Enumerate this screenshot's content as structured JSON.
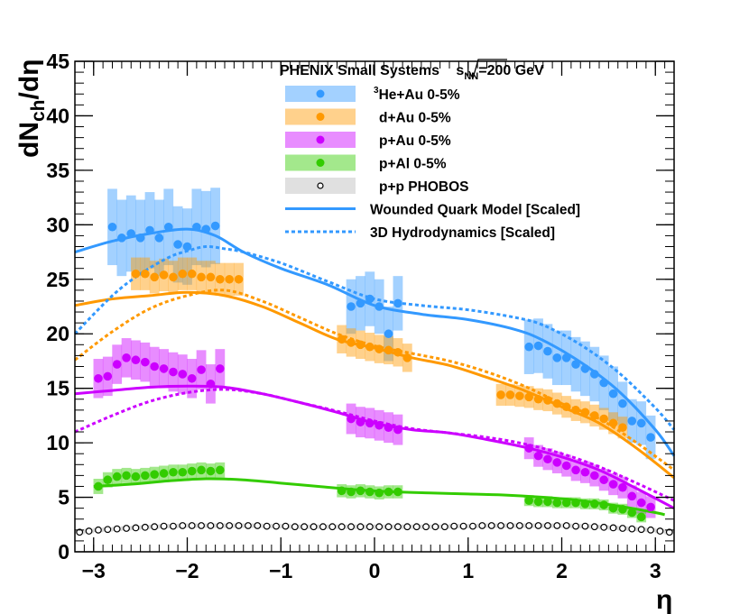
{
  "chart_data": {
    "type": "scatter",
    "title_prefix": "PHENIX Small Systems ",
    "title_sqrt": "s",
    "title_sub": "NN",
    "title_suffix": "=200 GeV",
    "ylabel_main": "dN",
    "ylabel_sub": "ch",
    "ylabel_tail": "/dη",
    "xlabel": "η",
    "xlim": [
      -3.2,
      3.2
    ],
    "ylim": [
      0,
      45
    ],
    "xticks": [
      -3,
      -2,
      -1,
      0,
      1,
      2,
      3
    ],
    "xtick_labels": [
      "−3",
      "−2",
      "−1",
      "0",
      "1",
      "2",
      "3"
    ],
    "yticks": [
      0,
      5,
      10,
      15,
      20,
      25,
      30,
      35,
      40,
      45
    ],
    "ytick_labels": [
      "0",
      "5",
      "10",
      "15",
      "20",
      "25",
      "30",
      "35",
      "40",
      "45"
    ],
    "colors": {
      "he_au": "#3399ff",
      "d_au": "#ff9900",
      "p_au": "#cc00ff",
      "p_al": "#33cc00",
      "pp": "#000000",
      "pp_band": "#cccccc"
    },
    "legend": [
      {
        "key": "he_au",
        "kind": "band",
        "label_sup": "3",
        "label": "He+Au 0-5%"
      },
      {
        "key": "d_au",
        "kind": "band",
        "label": "d+Au  0-5%"
      },
      {
        "key": "p_au",
        "kind": "band",
        "label": "p+Au  0-5%"
      },
      {
        "key": "p_al",
        "kind": "band",
        "label": "p+Al   0-5%"
      },
      {
        "key": "pp",
        "kind": "open",
        "label": "p+p    PHOBOS"
      },
      {
        "key": "wqm",
        "kind": "solid",
        "label": "Wounded Quark Model [Scaled]"
      },
      {
        "key": "hydro",
        "kind": "dashed",
        "label": "3D Hydrodynamics [Scaled]"
      }
    ],
    "series": [
      {
        "name": "3He+Au 0-5%",
        "key": "he_au",
        "x": [
          -2.8,
          -2.7,
          -2.6,
          -2.5,
          -2.4,
          -2.3,
          -2.2,
          -2.1,
          -2.0,
          -1.9,
          -1.8,
          -1.7,
          -0.25,
          -0.15,
          -0.05,
          0.05,
          0.15,
          0.25,
          1.65,
          1.75,
          1.85,
          1.95,
          2.05,
          2.15,
          2.25,
          2.35,
          2.45,
          2.55,
          2.65,
          2.75,
          2.85,
          2.95
        ],
        "y": [
          29.8,
          28.8,
          29.2,
          28.8,
          29.5,
          28.8,
          29.8,
          28.2,
          28.0,
          29.8,
          29.6,
          29.9,
          22.5,
          22.8,
          23.2,
          22.5,
          20.0,
          22.8,
          18.8,
          18.9,
          18.4,
          17.8,
          17.8,
          17.2,
          16.8,
          16.3,
          15.5,
          14.5,
          13.6,
          12.0,
          11.8,
          10.5
        ],
        "err": [
          3.5,
          3.5,
          3.5,
          3.5,
          3.5,
          3.5,
          3.5,
          3.5,
          3.5,
          3.5,
          3.5,
          3.5,
          2.5,
          2.5,
          2.5,
          2.5,
          2.5,
          2.5,
          2.5,
          2.5,
          2.5,
          2.5,
          2.5,
          2.5,
          2.5,
          2.5,
          2.5,
          2.5,
          2.0,
          2.0,
          2.0,
          2.0
        ]
      },
      {
        "name": "d+Au 0-5%",
        "key": "d_au",
        "x": [
          -2.55,
          -2.45,
          -2.35,
          -2.25,
          -2.15,
          -2.05,
          -1.95,
          -1.85,
          -1.75,
          -1.65,
          -1.55,
          -1.45,
          -0.35,
          -0.25,
          -0.15,
          -0.05,
          0.05,
          0.15,
          0.25,
          0.35,
          1.35,
          1.45,
          1.55,
          1.65,
          1.75,
          1.85,
          1.95,
          2.05,
          2.15,
          2.25,
          2.35,
          2.45,
          2.55,
          2.65
        ],
        "y": [
          25.5,
          25.5,
          25.2,
          25.4,
          25.2,
          25.5,
          25.5,
          25.2,
          25.2,
          25.0,
          25.0,
          25.0,
          19.5,
          19.2,
          19.0,
          18.8,
          18.6,
          18.5,
          18.3,
          17.8,
          14.4,
          14.4,
          14.3,
          14.2,
          14.0,
          13.9,
          13.6,
          13.3,
          13.0,
          12.8,
          12.5,
          12.2,
          11.8,
          11.4
        ],
        "err": [
          1.5,
          1.5,
          1.5,
          1.5,
          1.5,
          1.5,
          1.5,
          1.5,
          1.5,
          1.5,
          1.5,
          1.5,
          1.3,
          1.3,
          1.3,
          1.3,
          1.3,
          1.3,
          1.3,
          1.3,
          1.0,
          1.0,
          1.0,
          1.0,
          1.0,
          1.0,
          1.0,
          1.0,
          1.0,
          1.0,
          1.0,
          1.0,
          1.0,
          1.0
        ]
      },
      {
        "name": "p+Au 0-5%",
        "key": "p_au",
        "x": [
          -2.95,
          -2.85,
          -2.75,
          -2.65,
          -2.55,
          -2.45,
          -2.35,
          -2.25,
          -2.15,
          -2.05,
          -1.95,
          -1.85,
          -1.75,
          -1.65,
          -0.25,
          -0.15,
          -0.05,
          0.05,
          0.15,
          0.25,
          1.65,
          1.75,
          1.85,
          1.95,
          2.05,
          2.15,
          2.25,
          2.35,
          2.45,
          2.55,
          2.65,
          2.75,
          2.85,
          2.95
        ],
        "y": [
          15.9,
          16.1,
          17.2,
          17.8,
          17.6,
          17.4,
          17.0,
          16.8,
          16.5,
          16.3,
          15.9,
          16.7,
          15.4,
          16.8,
          12.2,
          11.9,
          11.8,
          11.6,
          11.4,
          11.2,
          9.5,
          8.8,
          8.5,
          8.2,
          7.9,
          7.5,
          7.3,
          7.0,
          6.6,
          6.2,
          5.9,
          5.1,
          4.5,
          4.1
        ],
        "err": [
          1.8,
          1.8,
          1.8,
          1.8,
          1.8,
          1.8,
          1.8,
          1.8,
          1.8,
          1.8,
          1.8,
          1.8,
          1.8,
          1.8,
          1.4,
          1.4,
          1.4,
          1.4,
          1.4,
          1.4,
          1.0,
          1.0,
          1.0,
          1.0,
          1.0,
          1.0,
          1.0,
          1.0,
          1.0,
          1.0,
          1.0,
          1.0,
          1.0,
          1.0
        ]
      },
      {
        "name": "p+Al 0-5%",
        "key": "p_al",
        "x": [
          -2.95,
          -2.85,
          -2.75,
          -2.65,
          -2.55,
          -2.45,
          -2.35,
          -2.25,
          -2.15,
          -2.05,
          -1.95,
          -1.85,
          -1.75,
          -1.65,
          -0.35,
          -0.25,
          -0.15,
          -0.05,
          0.05,
          0.15,
          0.25,
          1.65,
          1.75,
          1.85,
          1.95,
          2.05,
          2.15,
          2.25,
          2.35,
          2.45,
          2.55,
          2.65,
          2.75,
          2.85
        ],
        "y": [
          6.0,
          6.6,
          6.9,
          7.0,
          6.9,
          7.0,
          7.1,
          7.2,
          7.3,
          7.3,
          7.4,
          7.5,
          7.4,
          7.5,
          5.6,
          5.5,
          5.6,
          5.5,
          5.4,
          5.5,
          5.5,
          4.7,
          4.6,
          4.6,
          4.5,
          4.5,
          4.5,
          4.4,
          4.4,
          4.3,
          4.0,
          3.9,
          3.6,
          3.2
        ],
        "err": [
          0.7,
          0.7,
          0.7,
          0.7,
          0.7,
          0.7,
          0.7,
          0.7,
          0.7,
          0.7,
          0.7,
          0.7,
          0.7,
          0.7,
          0.6,
          0.6,
          0.6,
          0.6,
          0.6,
          0.6,
          0.6,
          0.5,
          0.5,
          0.5,
          0.5,
          0.5,
          0.5,
          0.5,
          0.5,
          0.5,
          0.5,
          0.5,
          0.5,
          0.5
        ]
      },
      {
        "name": "p+p PHOBOS",
        "key": "pp",
        "x": [
          -3.15,
          -3.05,
          -2.95,
          -2.85,
          -2.75,
          -2.65,
          -2.55,
          -2.45,
          -2.35,
          -2.25,
          -2.15,
          -2.05,
          -1.95,
          -1.85,
          -1.75,
          -1.65,
          -1.55,
          -1.45,
          -1.35,
          -1.25,
          -1.15,
          -1.05,
          -0.95,
          -0.85,
          -0.75,
          -0.65,
          -0.55,
          -0.45,
          -0.35,
          -0.25,
          -0.15,
          -0.05,
          0.05,
          0.15,
          0.25,
          0.35,
          0.45,
          0.55,
          0.65,
          0.75,
          0.85,
          0.95,
          1.05,
          1.15,
          1.25,
          1.35,
          1.45,
          1.55,
          1.65,
          1.75,
          1.85,
          1.95,
          2.05,
          2.15,
          2.25,
          2.35,
          2.45,
          2.55,
          2.65,
          2.75,
          2.85,
          2.95,
          3.05,
          3.15
        ],
        "y": [
          1.8,
          1.9,
          2.0,
          2.05,
          2.1,
          2.15,
          2.2,
          2.25,
          2.3,
          2.35,
          2.35,
          2.4,
          2.4,
          2.4,
          2.4,
          2.4,
          2.4,
          2.4,
          2.4,
          2.4,
          2.35,
          2.35,
          2.35,
          2.3,
          2.3,
          2.3,
          2.3,
          2.3,
          2.3,
          2.3,
          2.3,
          2.3,
          2.3,
          2.3,
          2.3,
          2.3,
          2.3,
          2.3,
          2.3,
          2.3,
          2.35,
          2.35,
          2.35,
          2.4,
          2.4,
          2.4,
          2.4,
          2.4,
          2.4,
          2.4,
          2.4,
          2.4,
          2.4,
          2.35,
          2.35,
          2.3,
          2.25,
          2.2,
          2.15,
          2.1,
          2.05,
          2.0,
          1.9,
          1.8
        ],
        "err": [
          0.2,
          0.2,
          0.2,
          0.2,
          0.2,
          0.2,
          0.2,
          0.2,
          0.2,
          0.2,
          0.2,
          0.2,
          0.2,
          0.2,
          0.2,
          0.2,
          0.2,
          0.2,
          0.2,
          0.2,
          0.2,
          0.2,
          0.2,
          0.2,
          0.2,
          0.2,
          0.2,
          0.2,
          0.2,
          0.2,
          0.2,
          0.2,
          0.2,
          0.2,
          0.2,
          0.2,
          0.2,
          0.2,
          0.2,
          0.2,
          0.2,
          0.2,
          0.2,
          0.2,
          0.2,
          0.2,
          0.2,
          0.2,
          0.2,
          0.2,
          0.2,
          0.2,
          0.2,
          0.2,
          0.2,
          0.2,
          0.2,
          0.2,
          0.2,
          0.2,
          0.2,
          0.2,
          0.2,
          0.2
        ]
      }
    ],
    "curves": [
      {
        "name": "Wounded Quark Model [Scaled]",
        "key": "he_au",
        "style": "solid",
        "x": [
          -3.2,
          -2.8,
          -2.4,
          -2.0,
          -1.7,
          -1.4,
          -1.0,
          -0.5,
          0.0,
          0.5,
          1.0,
          1.5,
          1.8,
          2.2,
          2.6,
          3.0,
          3.2
        ],
        "y": [
          27.5,
          28.5,
          29.2,
          29.6,
          29.0,
          27.5,
          26.0,
          24.5,
          22.6,
          21.8,
          21.3,
          20.4,
          19.4,
          17.4,
          14.8,
          11.2,
          8.8
        ]
      },
      {
        "name": "Wounded Quark Model [Scaled]",
        "key": "d_au",
        "style": "solid",
        "x": [
          -3.2,
          -2.8,
          -2.4,
          -2.0,
          -1.6,
          -1.2,
          -0.8,
          -0.4,
          0.0,
          0.4,
          0.8,
          1.2,
          1.6,
          2.0,
          2.4,
          2.8,
          3.2
        ],
        "y": [
          22.6,
          23.2,
          23.5,
          23.8,
          23.5,
          22.5,
          21.0,
          19.5,
          18.7,
          17.8,
          17.1,
          16.0,
          14.8,
          13.3,
          11.8,
          9.5,
          6.8
        ]
      },
      {
        "name": "Wounded Quark Model [Scaled]",
        "key": "p_au",
        "style": "solid",
        "x": [
          -3.2,
          -2.8,
          -2.4,
          -2.0,
          -1.6,
          -1.2,
          -0.8,
          -0.4,
          0.0,
          0.4,
          0.8,
          1.2,
          1.6,
          2.0,
          2.4,
          2.8,
          3.2
        ],
        "y": [
          14.5,
          14.8,
          15.1,
          15.2,
          15.1,
          14.5,
          13.7,
          12.8,
          11.8,
          11.2,
          10.9,
          10.3,
          9.6,
          8.7,
          7.5,
          5.8,
          4.0
        ]
      },
      {
        "name": "Wounded Quark Model [Scaled]",
        "key": "p_al",
        "style": "solid",
        "x": [
          -3.0,
          -2.6,
          -2.2,
          -1.8,
          -1.4,
          -1.0,
          -0.6,
          -0.2,
          0.2,
          0.6,
          1.0,
          1.4,
          1.8,
          2.2,
          2.6,
          3.0,
          3.1
        ],
        "y": [
          6.0,
          6.2,
          6.5,
          6.7,
          6.6,
          6.3,
          6.0,
          5.7,
          5.5,
          5.4,
          5.3,
          5.2,
          5.0,
          4.7,
          4.2,
          3.6,
          3.4
        ]
      },
      {
        "name": "3D Hydrodynamics [Scaled]",
        "key": "he_au",
        "style": "dashed",
        "x": [
          -3.2,
          -2.8,
          -2.5,
          -2.2,
          -2.0,
          -1.8,
          -1.6,
          -1.4,
          -1.0,
          -0.5,
          0.0,
          0.5,
          1.0,
          1.5,
          1.8,
          2.2,
          2.6,
          3.0,
          3.2
        ],
        "y": [
          20.0,
          23.5,
          25.5,
          27.0,
          27.6,
          28.0,
          27.8,
          27.5,
          26.5,
          24.8,
          23.2,
          22.6,
          22.2,
          21.5,
          20.8,
          19.0,
          16.5,
          13.2,
          11.2
        ]
      },
      {
        "name": "3D Hydrodynamics [Scaled]",
        "key": "d_au",
        "style": "dashed",
        "x": [
          -3.2,
          -2.8,
          -2.4,
          -2.0,
          -1.6,
          -1.2,
          -0.8,
          -0.4,
          0.0,
          0.4,
          0.8,
          1.2,
          1.6,
          2.0,
          2.4,
          2.8,
          3.2
        ],
        "y": [
          17.6,
          20.2,
          22.3,
          23.5,
          24.0,
          23.0,
          21.5,
          20.0,
          18.9,
          18.2,
          17.5,
          16.5,
          15.2,
          13.6,
          12.2,
          10.0,
          7.5
        ]
      },
      {
        "name": "3D Hydrodynamics [Scaled]",
        "key": "p_au",
        "style": "dashed",
        "x": [
          -3.2,
          -2.8,
          -2.4,
          -2.0,
          -1.6,
          -1.2,
          -0.8,
          -0.4,
          0.0,
          0.4,
          0.8,
          1.2,
          1.6,
          2.0,
          2.4,
          2.8,
          3.2
        ],
        "y": [
          11.0,
          12.5,
          13.8,
          14.6,
          14.9,
          14.5,
          13.7,
          12.9,
          12.0,
          11.3,
          10.9,
          10.5,
          9.9,
          9.0,
          7.8,
          6.3,
          4.7
        ]
      }
    ]
  }
}
